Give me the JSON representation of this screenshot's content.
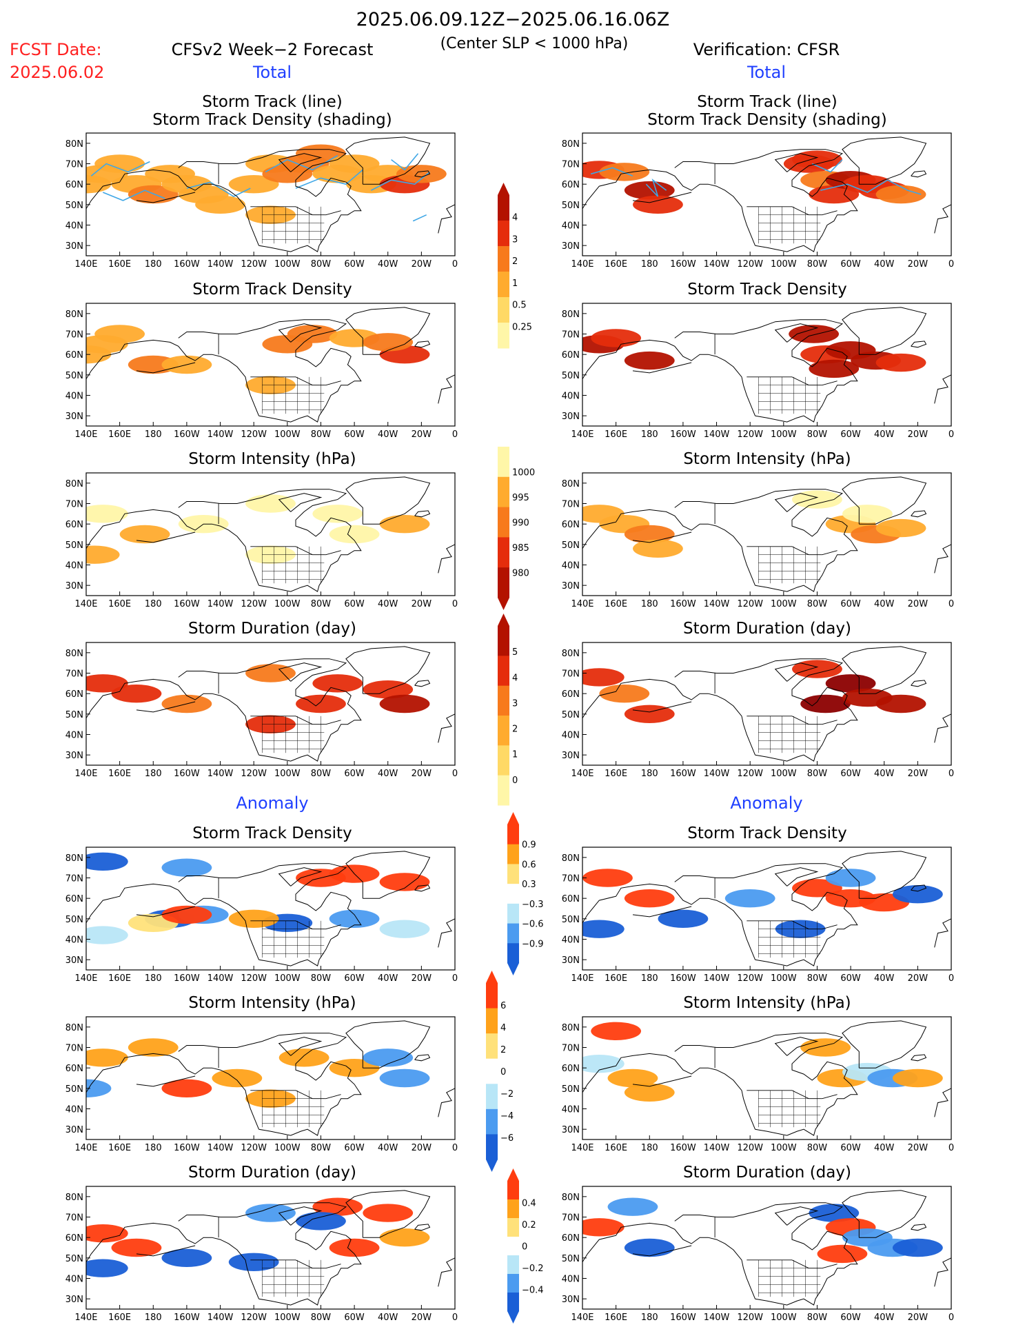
{
  "header": {
    "date_range": "2025.06.09.12Z−2025.06.16.06Z",
    "fcst_label": "FCST Date:",
    "fcst_date": "2025.06.02",
    "left_title": "CFSv2 Week−2 Forecast",
    "criterion": "(Center SLP < 1000 hPa)",
    "right_title": "Verification: CFSR"
  },
  "sections": {
    "total": "Total",
    "anomaly": "Anomaly"
  },
  "axes": {
    "lon_ticks": [
      "140E",
      "160E",
      "180",
      "160W",
      "140W",
      "120W",
      "100W",
      "80W",
      "60W",
      "40W",
      "20W",
      "0"
    ],
    "lat_ticks": [
      "80N",
      "70N",
      "60N",
      "50N",
      "40N",
      "30N"
    ]
  },
  "colors": {
    "title_red": "#ff2020",
    "section_blue": "#1f3fff",
    "track_line": "#3fa7e6",
    "warm_scale": [
      "#fff6a8",
      "#ffd966",
      "#ffab2e",
      "#f77a1c",
      "#e52d0c",
      "#b31200",
      "#8c0000"
    ],
    "intensity_scale": [
      "#fff6a8",
      "#ffab2e",
      "#f77a1c",
      "#e52d0c",
      "#b31200"
    ],
    "diverging_scale": [
      "#1a5fd6",
      "#4b9bf0",
      "#b8e6f7",
      "#ffffff",
      "#ffe17a",
      "#ffa21a",
      "#ff3d0f"
    ]
  },
  "colorbars": [
    {
      "id": "density",
      "labels": [
        "4",
        "3",
        "2",
        "1",
        "0.5",
        "0.25"
      ]
    },
    {
      "id": "intensity",
      "labels": [
        "1000",
        "995",
        "990",
        "985",
        "980"
      ]
    },
    {
      "id": "duration",
      "labels": [
        "5",
        "4",
        "3",
        "2",
        "1",
        "0"
      ]
    },
    {
      "id": "anom_density",
      "labels": [
        "0.9",
        "0.6",
        "0.3",
        "−0.3",
        "−0.6",
        "−0.9"
      ]
    },
    {
      "id": "anom_intensity",
      "labels": [
        "6",
        "4",
        "2",
        "0",
        "−2",
        "−4",
        "−6"
      ]
    },
    {
      "id": "anom_duration",
      "labels": [
        "0.4",
        "0.2",
        "0",
        "−0.2",
        "−0.4"
      ]
    }
  ],
  "chart_data": [
    {
      "type": "heatmap",
      "id": "fcst_track",
      "title": "Storm Track (line)",
      "subtitle": "Storm Track Density (shading)",
      "scale": "warm",
      "cells": [
        [
          140,
          60,
          1
        ],
        [
          150,
          65,
          1
        ],
        [
          160,
          70,
          1
        ],
        [
          170,
          60,
          1
        ],
        [
          180,
          55,
          2
        ],
        [
          190,
          65,
          1
        ],
        [
          200,
          60,
          1
        ],
        [
          210,
          55,
          1
        ],
        [
          220,
          50,
          1
        ],
        [
          240,
          60,
          1
        ],
        [
          250,
          70,
          1
        ],
        [
          260,
          65,
          2
        ],
        [
          270,
          70,
          2
        ],
        [
          280,
          75,
          2
        ],
        [
          290,
          65,
          1
        ],
        [
          300,
          70,
          1
        ],
        [
          310,
          60,
          1
        ],
        [
          320,
          65,
          1
        ],
        [
          330,
          60,
          3
        ],
        [
          340,
          65,
          2
        ],
        [
          250,
          45,
          1
        ]
      ],
      "tracks": [
        [
          [
            143,
            64
          ],
          [
            152,
            70
          ],
          [
            165,
            66
          ],
          [
            178,
            71
          ]
        ],
        [
          [
            150,
            56
          ],
          [
            162,
            52
          ],
          [
            175,
            57
          ],
          [
            187,
            53
          ]
        ],
        [
          [
            200,
            58
          ],
          [
            214,
            61
          ],
          [
            228,
            54
          ],
          [
            238,
            58
          ]
        ],
        [
          [
            247,
            66
          ],
          [
            260,
            72
          ],
          [
            275,
            67
          ],
          [
            290,
            74
          ]
        ],
        [
          [
            265,
            58
          ],
          [
            280,
            63
          ],
          [
            295,
            60
          ],
          [
            305,
            67
          ]
        ],
        [
          [
            310,
            57
          ],
          [
            322,
            62
          ],
          [
            336,
            60
          ],
          [
            345,
            66
          ]
        ],
        [
          [
            322,
            72
          ],
          [
            330,
            67
          ],
          [
            338,
            75
          ]
        ],
        [
          [
            335,
            42
          ],
          [
            343,
            45
          ]
        ]
      ]
    },
    {
      "type": "heatmap",
      "id": "cfsr_track",
      "title": "Storm Track (line)",
      "subtitle": "Storm Track Density (shading)",
      "scale": "warm",
      "cells": [
        [
          150,
          67,
          3
        ],
        [
          165,
          66,
          2
        ],
        [
          180,
          57,
          4
        ],
        [
          185,
          50,
          3
        ],
        [
          275,
          70,
          3
        ],
        [
          285,
          62,
          2
        ],
        [
          290,
          55,
          3
        ],
        [
          300,
          62,
          4
        ],
        [
          310,
          60,
          3
        ],
        [
          320,
          57,
          3
        ],
        [
          330,
          55,
          2
        ],
        [
          280,
          72,
          3
        ]
      ],
      "tracks": [
        [
          [
            145,
            65
          ],
          [
            158,
            68
          ],
          [
            170,
            64
          ]
        ],
        [
          [
            178,
            60
          ],
          [
            185,
            54
          ],
          [
            182,
            62
          ],
          [
            190,
            57
          ]
        ],
        [
          [
            277,
            70
          ],
          [
            288,
            66
          ],
          [
            295,
            72
          ]
        ],
        [
          [
            282,
            57
          ],
          [
            298,
            60
          ],
          [
            310,
            56
          ],
          [
            322,
            62
          ],
          [
            334,
            57
          ],
          [
            342,
            55
          ]
        ]
      ]
    },
    {
      "type": "heatmap",
      "id": "fcst_density",
      "title": "Storm Track Density",
      "scale": "warm",
      "cells": [
        [
          140,
          60,
          1
        ],
        [
          150,
          65,
          1
        ],
        [
          160,
          70,
          1
        ],
        [
          180,
          55,
          2
        ],
        [
          200,
          55,
          1
        ],
        [
          260,
          65,
          2
        ],
        [
          275,
          70,
          2
        ],
        [
          300,
          68,
          1
        ],
        [
          330,
          60,
          3
        ],
        [
          320,
          66,
          2
        ],
        [
          250,
          45,
          1
        ]
      ]
    },
    {
      "type": "heatmap",
      "id": "cfsr_density",
      "title": "Storm Track Density",
      "scale": "warm",
      "cells": [
        [
          150,
          65,
          4
        ],
        [
          160,
          68,
          3
        ],
        [
          180,
          57,
          4
        ],
        [
          278,
          70,
          4
        ],
        [
          285,
          60,
          3
        ],
        [
          300,
          62,
          4
        ],
        [
          315,
          57,
          4
        ],
        [
          330,
          56,
          3
        ],
        [
          290,
          53,
          4
        ]
      ]
    },
    {
      "type": "heatmap",
      "id": "fcst_intensity",
      "title": "Storm Intensity (hPa)",
      "scale": "intensity",
      "cells": [
        [
          150,
          65,
          995
        ],
        [
          175,
          55,
          990
        ],
        [
          210,
          60,
          995
        ],
        [
          250,
          70,
          995
        ],
        [
          290,
          65,
          995
        ],
        [
          330,
          60,
          990
        ],
        [
          300,
          55,
          995
        ],
        [
          250,
          45,
          995
        ],
        [
          145,
          45,
          990
        ]
      ]
    },
    {
      "type": "heatmap",
      "id": "cfsr_intensity",
      "title": "Storm Intensity (hPa)",
      "scale": "intensity",
      "cells": [
        [
          150,
          65,
          990
        ],
        [
          165,
          60,
          990
        ],
        [
          180,
          55,
          985
        ],
        [
          185,
          48,
          990
        ],
        [
          280,
          72,
          995
        ],
        [
          300,
          60,
          990
        ],
        [
          315,
          55,
          985
        ],
        [
          330,
          58,
          990
        ],
        [
          310,
          65,
          995
        ]
      ]
    },
    {
      "type": "heatmap",
      "id": "fcst_duration",
      "title": "Storm Duration (day)",
      "scale": "warm",
      "cells": [
        [
          150,
          65,
          3
        ],
        [
          170,
          60,
          3
        ],
        [
          200,
          55,
          2
        ],
        [
          250,
          70,
          2
        ],
        [
          290,
          65,
          3
        ],
        [
          320,
          62,
          3
        ],
        [
          330,
          55,
          4
        ],
        [
          280,
          55,
          3
        ],
        [
          250,
          45,
          3
        ]
      ]
    },
    {
      "type": "heatmap",
      "id": "cfsr_duration",
      "title": "Storm Duration (day)",
      "scale": "warm",
      "cells": [
        [
          150,
          68,
          3
        ],
        [
          165,
          60,
          2
        ],
        [
          180,
          50,
          3
        ],
        [
          285,
          55,
          5
        ],
        [
          300,
          65,
          5
        ],
        [
          310,
          58,
          4
        ],
        [
          330,
          55,
          4
        ],
        [
          280,
          72,
          3
        ]
      ]
    },
    {
      "type": "heatmap",
      "id": "fcst_anom_density",
      "title": "Storm Track Density",
      "scale": "diverging",
      "cells": [
        [
          150,
          78,
          -0.9
        ],
        [
          200,
          75,
          -0.6
        ],
        [
          280,
          70,
          0.9
        ],
        [
          300,
          72,
          0.9
        ],
        [
          330,
          68,
          0.9
        ],
        [
          190,
          50,
          -0.9
        ],
        [
          210,
          52,
          -0.6
        ],
        [
          260,
          48,
          -0.9
        ],
        [
          300,
          50,
          -0.6
        ],
        [
          330,
          45,
          -0.3
        ],
        [
          150,
          42,
          -0.3
        ],
        [
          180,
          48,
          0.3
        ],
        [
          200,
          52,
          0.9
        ],
        [
          240,
          50,
          0.6
        ]
      ]
    },
    {
      "type": "heatmap",
      "id": "cfsr_anom_density",
      "title": "Storm Track Density",
      "scale": "diverging",
      "cells": [
        [
          155,
          70,
          0.9
        ],
        [
          180,
          60,
          0.9
        ],
        [
          150,
          45,
          -0.9
        ],
        [
          200,
          50,
          -0.9
        ],
        [
          240,
          60,
          -0.6
        ],
        [
          280,
          65,
          0.9
        ],
        [
          300,
          60,
          0.9
        ],
        [
          320,
          58,
          0.9
        ],
        [
          340,
          62,
          -0.9
        ],
        [
          270,
          45,
          -0.9
        ],
        [
          300,
          70,
          -0.6
        ]
      ]
    },
    {
      "type": "heatmap",
      "id": "fcst_anom_intensity",
      "title": "Storm Intensity (hPa)",
      "scale": "diverging",
      "cells": [
        [
          150,
          65,
          2
        ],
        [
          180,
          70,
          2
        ],
        [
          200,
          50,
          4
        ],
        [
          230,
          55,
          2
        ],
        [
          270,
          65,
          2
        ],
        [
          300,
          60,
          2
        ],
        [
          320,
          65,
          -2
        ],
        [
          330,
          55,
          -2
        ],
        [
          140,
          50,
          -2
        ],
        [
          250,
          45,
          2
        ]
      ]
    },
    {
      "type": "heatmap",
      "id": "cfsr_anom_intensity",
      "title": "Storm Intensity (hPa)",
      "scale": "diverging",
      "cells": [
        [
          160,
          78,
          6
        ],
        [
          150,
          62,
          -2
        ],
        [
          170,
          55,
          4
        ],
        [
          180,
          48,
          4
        ],
        [
          285,
          70,
          4
        ],
        [
          295,
          55,
          4
        ],
        [
          310,
          58,
          -2
        ],
        [
          325,
          55,
          -4
        ],
        [
          340,
          55,
          4
        ]
      ]
    },
    {
      "type": "heatmap",
      "id": "fcst_anom_duration",
      "title": "Storm Duration (day)",
      "scale": "diverging",
      "cells": [
        [
          150,
          62,
          0.4
        ],
        [
          170,
          55,
          0.4
        ],
        [
          200,
          50,
          -0.4
        ],
        [
          240,
          48,
          -0.4
        ],
        [
          290,
          75,
          0.4
        ],
        [
          320,
          72,
          0.4
        ],
        [
          330,
          60,
          0.2
        ],
        [
          300,
          55,
          0.4
        ],
        [
          250,
          72,
          -0.2
        ],
        [
          280,
          68,
          -0.4
        ],
        [
          150,
          45,
          -0.4
        ]
      ]
    },
    {
      "type": "heatmap",
      "id": "cfsr_anom_duration",
      "title": "Storm Duration (day)",
      "scale": "diverging",
      "cells": [
        [
          170,
          75,
          -0.2
        ],
        [
          180,
          55,
          -0.4
        ],
        [
          150,
          65,
          0.4
        ],
        [
          290,
          72,
          -0.4
        ],
        [
          300,
          65,
          0.4
        ],
        [
          295,
          52,
          0.4
        ],
        [
          325,
          55,
          -0.2
        ],
        [
          340,
          55,
          -0.4
        ],
        [
          310,
          60,
          -0.2
        ]
      ]
    }
  ]
}
